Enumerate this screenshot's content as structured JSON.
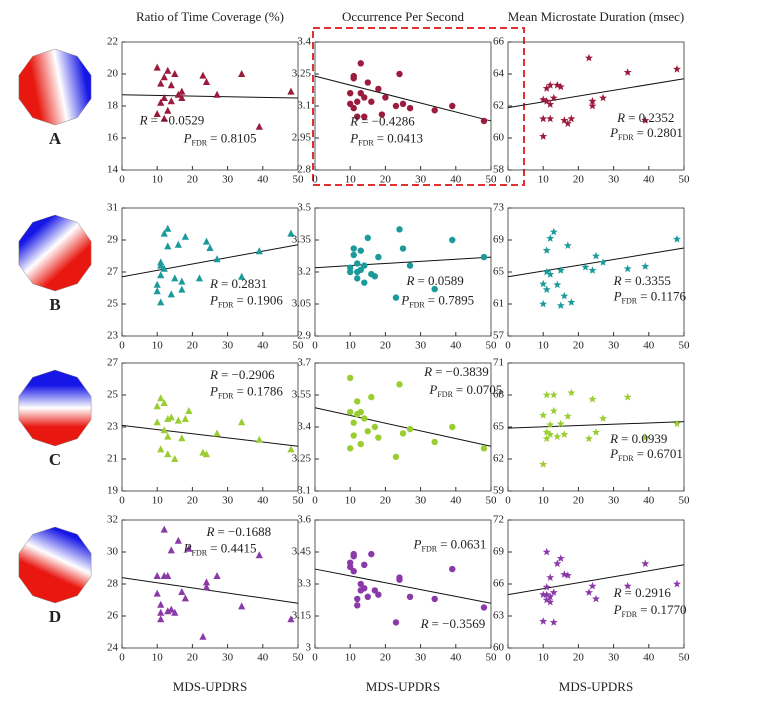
{
  "figure": {
    "column_titles": [
      "Ratio of Time Coverage (%)",
      "Occurrence Per Second",
      "Mean Microstate Duration (msec)"
    ],
    "row_labels": [
      "A",
      "B",
      "C",
      "D"
    ],
    "x_labels": [
      "MDS-UPDRS",
      "MDS-UPDRS",
      "MDS-UPDRS"
    ],
    "r_symbol": "R",
    "p_symbol": "P",
    "p_subscript": "FDR"
  },
  "chart_data": [
    {
      "type": "scatter",
      "marker": "triangle",
      "color": "#9b1b3c",
      "x": [
        10,
        11,
        12,
        13,
        13,
        12,
        14,
        14,
        15,
        16,
        17,
        10,
        11,
        23,
        24,
        27,
        34,
        39,
        48,
        17,
        12
      ],
      "values": [
        20.4,
        18.2,
        19.8,
        17.7,
        20.2,
        18.5,
        19.3,
        18.3,
        20,
        18.7,
        18.5,
        17.5,
        19.4,
        19.9,
        19.5,
        18.7,
        20,
        16.7,
        18.9,
        18.9,
        17.2
      ],
      "xlim": [
        0,
        50
      ],
      "xticks": [
        0,
        10,
        20,
        30,
        40,
        50
      ],
      "ylim": [
        14,
        22
      ],
      "yticks": [
        14,
        16,
        18,
        20,
        22
      ],
      "fit": {
        "x": [
          0,
          50
        ],
        "y": [
          18.7,
          18.5
        ]
      },
      "r_value": "= −0.0529",
      "p_value": "= 0.8105"
    },
    {
      "type": "scatter",
      "marker": "circle",
      "color": "#9b1b3c",
      "x": [
        10,
        11,
        11,
        12,
        12,
        13,
        13,
        14,
        15,
        16,
        18,
        19,
        20,
        23,
        24,
        25,
        27,
        34,
        39,
        48,
        11,
        14,
        10
      ],
      "values": [
        3.16,
        3.23,
        3.24,
        3.12,
        3.05,
        3.16,
        3.3,
        3.14,
        3.21,
        3.12,
        3.18,
        3.06,
        3.14,
        3.1,
        3.25,
        3.11,
        3.09,
        3.08,
        3.1,
        3.03,
        3.09,
        3.05,
        3.11
      ],
      "xlim": [
        0,
        50
      ],
      "xticks": [
        0,
        10,
        20,
        30,
        40,
        50
      ],
      "ylim": [
        2.8,
        3.4
      ],
      "yticks": [
        2.8,
        2.95,
        3.1,
        3.25,
        3.4
      ],
      "fit": {
        "x": [
          0,
          50
        ],
        "y": [
          3.24,
          3.03
        ]
      },
      "r_value": "= −0.4286",
      "p_value": "= 0.0413"
    },
    {
      "type": "scatter",
      "marker": "star",
      "color": "#9b1b3c",
      "x": [
        10,
        10,
        11,
        11,
        12,
        12,
        13,
        14,
        15,
        16,
        17,
        18,
        23,
        24,
        24,
        27,
        34,
        39,
        48,
        10,
        12
      ],
      "values": [
        60.1,
        61.2,
        63.1,
        62.3,
        61.2,
        63.3,
        62.5,
        63.3,
        63.2,
        61.1,
        60.9,
        61.2,
        65,
        62.3,
        62,
        62.5,
        64.1,
        61.1,
        64.3,
        62.4,
        62.1
      ],
      "xlim": [
        0,
        50
      ],
      "xticks": [
        0,
        10,
        20,
        30,
        40,
        50
      ],
      "ylim": [
        58,
        66
      ],
      "yticks": [
        58,
        60,
        62,
        64,
        66
      ],
      "fit": {
        "x": [
          0,
          50
        ],
        "y": [
          61.9,
          63.7
        ]
      },
      "r_value": "= 0.2352",
      "p_value": "= 0.2801"
    },
    {
      "type": "scatter",
      "marker": "triangle",
      "color": "#1a9a9a",
      "x": [
        10,
        10,
        11,
        11,
        11,
        12,
        12,
        13,
        13,
        14,
        15,
        16,
        17,
        17,
        18,
        22,
        24,
        25,
        27,
        34,
        39,
        48,
        11
      ],
      "values": [
        26.2,
        25.8,
        27.4,
        27.6,
        26.8,
        27.2,
        29.4,
        28.6,
        29.7,
        25.6,
        26.6,
        28.7,
        25.9,
        26.4,
        29.2,
        26.6,
        28.9,
        28.5,
        27.8,
        26.7,
        28.3,
        29.4,
        25.1
      ],
      "xlim": [
        0,
        50
      ],
      "xticks": [
        0,
        10,
        20,
        30,
        40,
        50
      ],
      "ylim": [
        23,
        31
      ],
      "yticks": [
        23,
        25,
        27,
        29,
        31
      ],
      "fit": {
        "x": [
          0,
          50
        ],
        "y": [
          26.7,
          28.7
        ]
      },
      "r_value": "= 0.2831",
      "p_value": "= 0.1906"
    },
    {
      "type": "scatter",
      "marker": "circle",
      "color": "#1a9a9a",
      "x": [
        10,
        11,
        11,
        12,
        12,
        12,
        13,
        13,
        14,
        15,
        16,
        17,
        18,
        23,
        24,
        25,
        27,
        34,
        39,
        48,
        10,
        14
      ],
      "values": [
        3.22,
        3.28,
        3.31,
        3.24,
        3.17,
        3.2,
        3.3,
        3.21,
        3.15,
        3.36,
        3.19,
        3.18,
        3.27,
        3.08,
        3.4,
        3.31,
        3.23,
        3.12,
        3.35,
        3.27,
        3.2,
        3.23
      ],
      "xlim": [
        0,
        50
      ],
      "xticks": [
        0,
        10,
        20,
        30,
        40,
        50
      ],
      "ylim": [
        2.9,
        3.5
      ],
      "yticks": [
        2.9,
        3.05,
        3.2,
        3.35,
        3.5
      ],
      "fit": {
        "x": [
          0,
          50
        ],
        "y": [
          3.22,
          3.27
        ]
      },
      "r_value": "= 0.0589",
      "p_value": "= 0.7895"
    },
    {
      "type": "scatter",
      "marker": "star",
      "color": "#1a9a9a",
      "x": [
        10,
        10,
        11,
        11,
        12,
        12,
        13,
        14,
        15,
        16,
        17,
        18,
        22,
        24,
        25,
        27,
        34,
        39,
        48,
        11,
        15
      ],
      "values": [
        61,
        63.5,
        67.7,
        65,
        64.7,
        69.2,
        70,
        63.4,
        65.2,
        62,
        68.3,
        61.2,
        65.6,
        65.2,
        67,
        66.2,
        65.4,
        65.7,
        69.1,
        62.8,
        60.8
      ],
      "xlim": [
        0,
        50
      ],
      "xticks": [
        0,
        10,
        20,
        30,
        40,
        50
      ],
      "ylim": [
        57,
        73
      ],
      "yticks": [
        57,
        61,
        65,
        69,
        73
      ],
      "fit": {
        "x": [
          0,
          50
        ],
        "y": [
          64.4,
          68
        ]
      },
      "r_value": "= 0.3355",
      "p_value": "= 0.1176"
    },
    {
      "type": "scatter",
      "marker": "triangle",
      "color": "#9acd32",
      "x": [
        10,
        11,
        11,
        12,
        12,
        13,
        13,
        14,
        15,
        16,
        17,
        18,
        19,
        23,
        24,
        27,
        34,
        39,
        48,
        10,
        13
      ],
      "values": [
        23.3,
        24.8,
        21.6,
        24.5,
        22.8,
        23.5,
        21.3,
        23.6,
        21,
        23.4,
        22.3,
        23.5,
        24,
        21.4,
        21.3,
        22.6,
        23.3,
        22.2,
        21.6,
        24.3,
        22.4
      ],
      "xlim": [
        0,
        50
      ],
      "xticks": [
        0,
        10,
        20,
        30,
        40,
        50
      ],
      "ylim": [
        19,
        27
      ],
      "yticks": [
        19,
        21,
        23,
        25,
        27
      ],
      "fit": {
        "x": [
          0,
          50
        ],
        "y": [
          23.1,
          21.8
        ]
      },
      "r_value": "= −0.2906",
      "p_value": "= 0.1786"
    },
    {
      "type": "scatter",
      "marker": "circle",
      "color": "#9acd32",
      "x": [
        10,
        10,
        11,
        11,
        12,
        12,
        13,
        14,
        15,
        16,
        17,
        18,
        23,
        24,
        25,
        27,
        34,
        39,
        48,
        10,
        13
      ],
      "values": [
        3.63,
        3.47,
        3.42,
        3.36,
        3.52,
        3.46,
        3.32,
        3.44,
        3.38,
        3.54,
        3.4,
        3.35,
        3.26,
        3.6,
        3.37,
        3.39,
        3.33,
        3.4,
        3.3,
        3.3,
        3.47
      ],
      "xlim": [
        0,
        50
      ],
      "xticks": [
        0,
        10,
        20,
        30,
        40,
        50
      ],
      "ylim": [
        3.1,
        3.7
      ],
      "yticks": [
        3.1,
        3.25,
        3.4,
        3.55,
        3.7
      ],
      "fit": {
        "x": [
          0,
          50
        ],
        "y": [
          3.49,
          3.31
        ]
      },
      "r_value": "= −0.3839",
      "p_value": "= 0.0705"
    },
    {
      "type": "scatter",
      "marker": "star",
      "color": "#9acd32",
      "x": [
        10,
        10,
        11,
        11,
        12,
        12,
        13,
        13,
        14,
        15,
        16,
        17,
        18,
        23,
        24,
        25,
        27,
        34,
        39,
        48,
        11
      ],
      "values": [
        61.5,
        66.1,
        68,
        64.5,
        65.2,
        64.3,
        66.5,
        68,
        64.1,
        65.3,
        64.3,
        66,
        68.2,
        63.9,
        67.6,
        64.5,
        65.8,
        67.8,
        64,
        65.3,
        63.9
      ],
      "xlim": [
        0,
        50
      ],
      "xticks": [
        0,
        10,
        20,
        30,
        40,
        50
      ],
      "ylim": [
        59,
        71
      ],
      "yticks": [
        59,
        62,
        65,
        68,
        71
      ],
      "fit": {
        "x": [
          0,
          50
        ],
        "y": [
          64.9,
          65.5
        ]
      },
      "r_value": "= 0.0939",
      "p_value": "= 0.6701"
    },
    {
      "type": "scatter",
      "marker": "triangle",
      "color": "#8a3aa8",
      "x": [
        10,
        10,
        11,
        11,
        12,
        12,
        13,
        14,
        14,
        15,
        16,
        17,
        18,
        19,
        23,
        24,
        24,
        27,
        34,
        39,
        48,
        11,
        13
      ],
      "values": [
        27.4,
        28.5,
        25.8,
        26.2,
        31.4,
        28.5,
        26.3,
        30.1,
        26.4,
        26.2,
        30.7,
        27.5,
        27.1,
        30.2,
        24.7,
        28.1,
        27.8,
        28.5,
        26.6,
        29.8,
        25.8,
        26.7,
        28.5
      ],
      "xlim": [
        0,
        50
      ],
      "xticks": [
        0,
        10,
        20,
        30,
        40,
        50
      ],
      "ylim": [
        24,
        32
      ],
      "yticks": [
        24,
        26,
        28,
        30,
        32
      ],
      "fit": {
        "x": [
          0,
          50
        ],
        "y": [
          28.4,
          26.8
        ]
      },
      "r_value": "= −0.1688",
      "p_value": "= 0.4415"
    },
    {
      "type": "scatter",
      "marker": "circle",
      "color": "#8a3aa8",
      "x": [
        10,
        11,
        11,
        11,
        12,
        12,
        13,
        13,
        14,
        15,
        16,
        17,
        18,
        23,
        24,
        24,
        27,
        34,
        39,
        48,
        10,
        14
      ],
      "values": [
        3.4,
        3.43,
        3.44,
        3.36,
        3.2,
        3.23,
        3.3,
        3.27,
        3.39,
        3.24,
        3.44,
        3.27,
        3.25,
        3.12,
        3.33,
        3.32,
        3.24,
        3.23,
        3.37,
        3.19,
        3.38,
        3.28
      ],
      "xlim": [
        0,
        50
      ],
      "xticks": [
        0,
        10,
        20,
        30,
        40,
        50
      ],
      "ylim": [
        3,
        3.6
      ],
      "yticks": [
        3,
        3.15,
        3.3,
        3.45,
        3.6
      ],
      "fit": {
        "x": [
          0,
          50
        ],
        "y": [
          3.37,
          3.21
        ]
      },
      "r_value": "= −0.3569",
      "p_value": "= 0.0631"
    },
    {
      "type": "scatter",
      "marker": "star",
      "color": "#8a3aa8",
      "x": [
        10,
        10,
        11,
        11,
        11,
        12,
        12,
        13,
        13,
        14,
        15,
        16,
        17,
        23,
        24,
        25,
        34,
        39,
        48,
        11,
        12
      ],
      "values": [
        65,
        62.5,
        65.7,
        64.5,
        69,
        66.6,
        64.8,
        62.4,
        65.2,
        67.9,
        68.4,
        66.9,
        66.8,
        65.2,
        65.8,
        64.6,
        65.8,
        67.9,
        66,
        65,
        64.3
      ],
      "xlim": [
        0,
        50
      ],
      "xticks": [
        0,
        10,
        20,
        30,
        40,
        50
      ],
      "ylim": [
        60,
        72
      ],
      "yticks": [
        60,
        63,
        66,
        69,
        72
      ],
      "fit": {
        "x": [
          0,
          50
        ],
        "y": [
          65,
          67.8
        ]
      },
      "r_value": "= 0.2916",
      "p_value": "= 0.1770"
    }
  ]
}
